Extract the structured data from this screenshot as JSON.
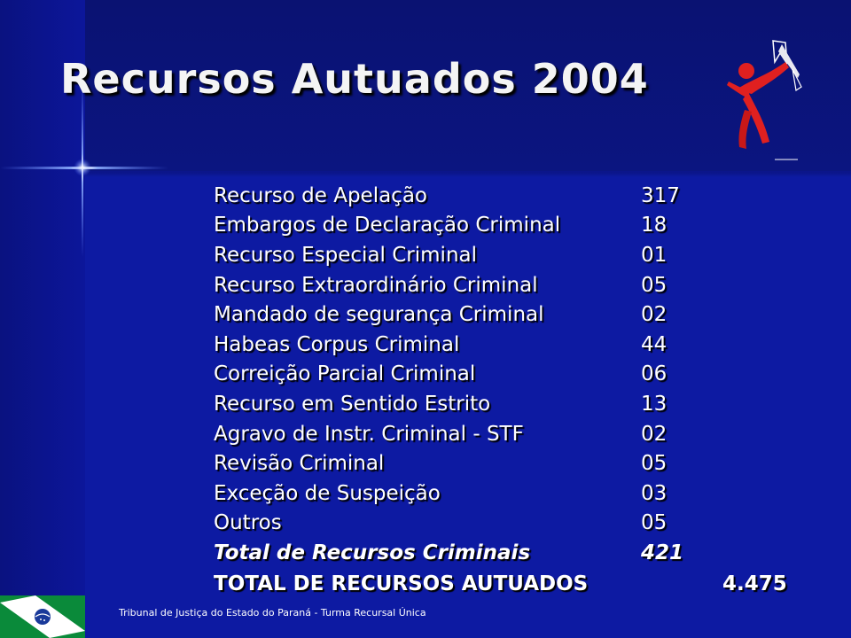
{
  "slide": {
    "title": "Recursos Autuados 2004",
    "rows": [
      {
        "label": "Recurso de Apelação",
        "value": "317"
      },
      {
        "label": "Embargos de Declaração Criminal",
        "value": "18"
      },
      {
        "label": "Recurso Especial Criminal",
        "value": "01"
      },
      {
        "label": "Recurso Extraordinário Criminal",
        "value": "05"
      },
      {
        "label": "Mandado de segurança Criminal",
        "value": "02"
      },
      {
        "label": "Habeas Corpus Criminal",
        "value": "44"
      },
      {
        "label": "Correição Parcial Criminal",
        "value": "06"
      },
      {
        "label": "Recurso em Sentido Estrito",
        "value": "13"
      },
      {
        "label": "Agravo de Instr. Criminal - STF",
        "value": "02"
      },
      {
        "label": "Revisão Criminal",
        "value": "05"
      },
      {
        "label": "Exceção de Suspeição",
        "value": "03"
      },
      {
        "label": "Outros",
        "value": "05"
      }
    ],
    "total_criminal": {
      "label": "Total de Recursos Criminais",
      "value": "421"
    },
    "grand_total": {
      "label": "TOTAL DE RECURSOS AUTUADOS",
      "value": "4.475"
    },
    "footer": "Tribunal de Justiça do Estado do Paraná - Turma Recursal Única"
  },
  "colors": {
    "background": "#0d1aa2",
    "title_text": "#f4f4f4",
    "body_text": "#ffffff",
    "logo_figure": "#e02020",
    "flag_green": "#0a8a3a"
  },
  "icons": {
    "logo": "justice-figure-logo",
    "flag": "parana-flag-icon",
    "decoration": "sparkle-star"
  }
}
